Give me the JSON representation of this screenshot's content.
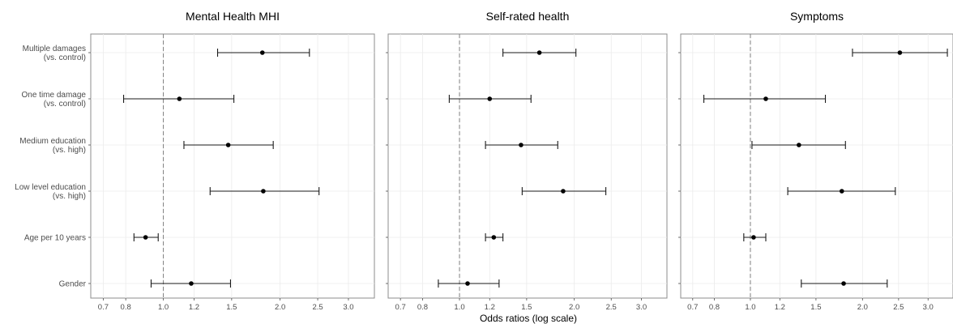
{
  "chart_data": {
    "type": "forest-plot",
    "xlabel": "Odds ratios (log scale)",
    "x_scale": "log",
    "x_ticks": [
      "0.7",
      "0.8",
      "1.0",
      "1.2",
      "1.5",
      "2.0",
      "2.5",
      "3.0"
    ],
    "xlim": [
      0.65,
      3.5
    ],
    "reference_line": 1.0,
    "grid": true,
    "categories": [
      [
        "Multiple damages",
        "(vs. control)"
      ],
      [
        "One time damage",
        "(vs. control)"
      ],
      [
        "Medium education",
        "(vs. high)"
      ],
      [
        "Low level education",
        "(vs. high)"
      ],
      [
        "Age per 10 years"
      ],
      [
        "Gender"
      ]
    ],
    "panels": [
      {
        "title": "Mental Health MHI",
        "points": [
          {
            "or": 1.8,
            "lo": 1.38,
            "hi": 2.38
          },
          {
            "or": 1.1,
            "lo": 0.79,
            "hi": 1.52
          },
          {
            "or": 1.47,
            "lo": 1.13,
            "hi": 1.92
          },
          {
            "or": 1.81,
            "lo": 1.32,
            "hi": 2.52
          },
          {
            "or": 0.9,
            "lo": 0.84,
            "hi": 0.97
          },
          {
            "or": 1.18,
            "lo": 0.93,
            "hi": 1.49
          }
        ]
      },
      {
        "title": "Self-rated health",
        "points": [
          {
            "or": 1.62,
            "lo": 1.3,
            "hi": 2.02
          },
          {
            "or": 1.2,
            "lo": 0.94,
            "hi": 1.54
          },
          {
            "or": 1.45,
            "lo": 1.17,
            "hi": 1.81
          },
          {
            "or": 1.87,
            "lo": 1.46,
            "hi": 2.42
          },
          {
            "or": 1.23,
            "lo": 1.17,
            "hi": 1.3
          },
          {
            "or": 1.05,
            "lo": 0.88,
            "hi": 1.27
          }
        ]
      },
      {
        "title": "Symptoms",
        "points": [
          {
            "or": 2.52,
            "lo": 1.88,
            "hi": 3.38
          },
          {
            "or": 1.1,
            "lo": 0.75,
            "hi": 1.59
          },
          {
            "or": 1.35,
            "lo": 1.01,
            "hi": 1.8
          },
          {
            "or": 1.76,
            "lo": 1.26,
            "hi": 2.45
          },
          {
            "or": 1.02,
            "lo": 0.96,
            "hi": 1.1
          },
          {
            "or": 1.78,
            "lo": 1.37,
            "hi": 2.33
          }
        ]
      }
    ]
  }
}
